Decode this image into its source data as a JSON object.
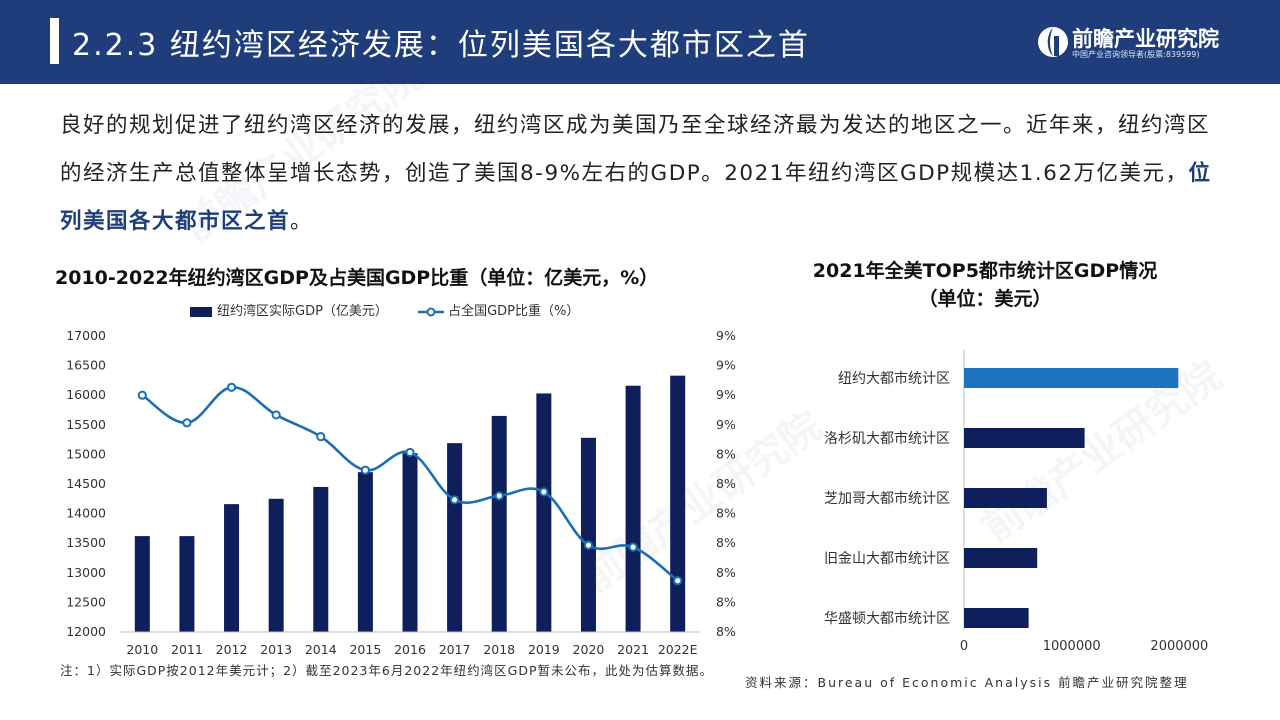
{
  "header": {
    "title": "2.2.3 纽约湾区经济发展：位列美国各大都市区之首",
    "logo_name": "前瞻产业研究院",
    "logo_sub": "中国产业咨询领导者(股票:839599)"
  },
  "intro": {
    "text": "良好的规划促进了纽约湾区经济的发展，纽约湾区成为美国乃至全球经济最为发达的地区之一。近年来，纽约湾区的经济生产总值整体呈增长态势，创造了美国8-9%左右的GDP。2021年纽约湾区GDP规模达1.62万亿美元，",
    "highlight": "位列美国各大都市区之首",
    "end": "。"
  },
  "watermark": "前瞻产业研究院",
  "colors": {
    "header_bg": "#1f3d7a",
    "bar_dark": "#0f1f5c",
    "line_blue": "#1a6fb5",
    "bar_highlight": "#1e73be"
  },
  "chart_data": [
    {
      "type": "bar",
      "title": "2010-2022年纽约湾区GDP及占美国GDP比重（单位：亿美元，%）",
      "categories": [
        "2010",
        "2011",
        "2012",
        "2013",
        "2014",
        "2015",
        "2016",
        "2017",
        "2018",
        "2019",
        "2020",
        "2021",
        "2022E"
      ],
      "series": [
        {
          "name": "纽约湾区实际GDP（亿美元）",
          "type": "bar",
          "axis": "left",
          "values": [
            13620,
            13620,
            14160,
            14250,
            14450,
            14700,
            15020,
            15190,
            15650,
            16030,
            15280,
            16160,
            16330
          ]
        },
        {
          "name": "占全国GDP比重（%）",
          "type": "line",
          "axis": "right",
          "values": [
            9.0,
            8.86,
            9.04,
            8.9,
            8.79,
            8.62,
            8.71,
            8.47,
            8.49,
            8.51,
            8.24,
            8.23,
            8.06
          ]
        }
      ],
      "ylim": [
        12000,
        17000
      ],
      "yticks": [
        "12000",
        "12500",
        "13000",
        "13500",
        "14000",
        "14500",
        "15000",
        "15500",
        "16000",
        "16500",
        "17000"
      ],
      "y2lim": [
        7.8,
        9.3
      ],
      "y2ticks": [
        "8%",
        "8%",
        "8%",
        "8%",
        "8%",
        "8%",
        "8%",
        "9%",
        "9%",
        "9%",
        "9%"
      ],
      "legend": "top-center",
      "grid": false
    },
    {
      "type": "bar",
      "orientation": "horizontal",
      "title": "2021年全美TOP5都市统计区GDP情况",
      "subtitle": "（单位：美元）",
      "categories": [
        "纽约大都市统计区",
        "洛杉矶大都市统计区",
        "芝加哥大都市统计区",
        "旧金山大都市统计区",
        "华盛顿大都市统计区"
      ],
      "values": [
        1990000,
        1120000,
        770000,
        680000,
        600000
      ],
      "xlim": [
        0,
        2600000
      ],
      "xticks": [
        "0",
        "1000000",
        "2000000"
      ],
      "grid": false
    }
  ],
  "note": "注：1）实际GDP按2012年美元计；2）截至2023年6月2022年纽约湾区GDP暂未公布，此处为估算数据。",
  "source": "资料来源：Bureau of Economic Analysis 前瞻产业研究院整理"
}
